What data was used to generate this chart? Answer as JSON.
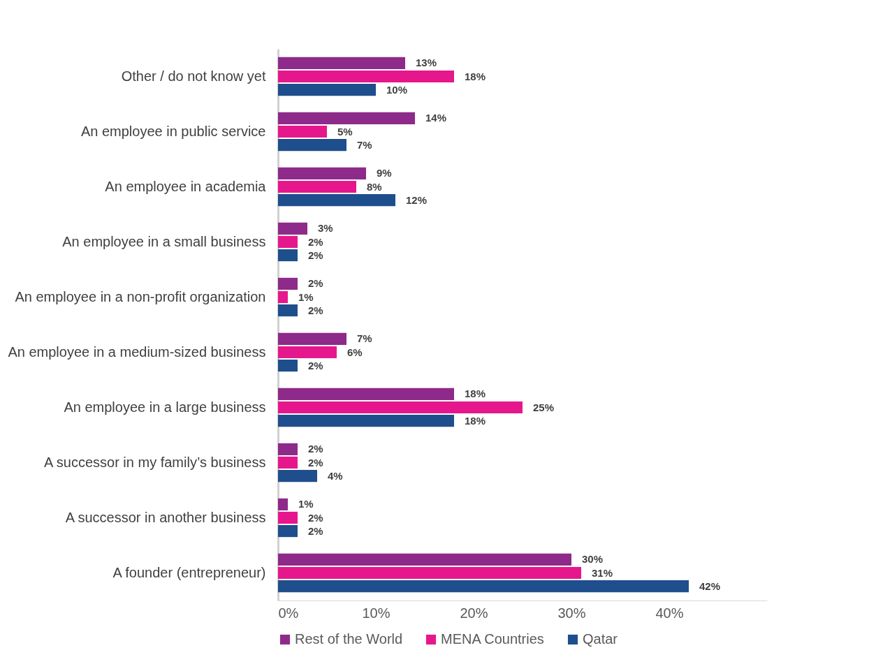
{
  "chart_data": {
    "type": "bar",
    "orientation": "horizontal",
    "categories": [
      "Other / do not know yet",
      "An employee in public service",
      "An employee in academia",
      "An employee in a small business",
      "An employee in a non-profit organization",
      "An employee in a medium-sized business",
      "An employee in a large business",
      "A successor in my family’s business",
      "A successor in another business",
      "A founder (entrepreneur)"
    ],
    "series": [
      {
        "name": "Rest of the World",
        "color": "#8e2a8a",
        "values": [
          13,
          14,
          9,
          3,
          2,
          7,
          18,
          2,
          1,
          30
        ],
        "value_labels": [
          "13%",
          "14%",
          "9%",
          "3%",
          "2%",
          "7%",
          "18%",
          "2%",
          "1%",
          "30%"
        ]
      },
      {
        "name": "MENA Countries",
        "color": "#e6178c",
        "values": [
          18,
          5,
          8,
          2,
          1,
          6,
          25,
          2,
          2,
          31
        ],
        "value_labels": [
          "18%",
          "5%",
          "8%",
          "2%",
          "1%",
          "6%",
          "25%",
          "2%",
          "2%",
          "31%"
        ]
      },
      {
        "name": "Qatar",
        "color": "#1f4e8c",
        "values": [
          10,
          7,
          12,
          2,
          2,
          2,
          18,
          4,
          2,
          42
        ],
        "value_labels": [
          "10%",
          "7%",
          "12%",
          "2%",
          "2%",
          "2%",
          "18%",
          "4%",
          "2%",
          "42%"
        ]
      }
    ],
    "xlim": [
      0,
      50
    ],
    "xticks": [
      {
        "value": 0,
        "label": "0%"
      },
      {
        "value": 10,
        "label": "10%"
      },
      {
        "value": 20,
        "label": "20%"
      },
      {
        "value": 30,
        "label": "30%"
      },
      {
        "value": 40,
        "label": "40%"
      }
    ],
    "grid": false,
    "legend": "bottom"
  }
}
